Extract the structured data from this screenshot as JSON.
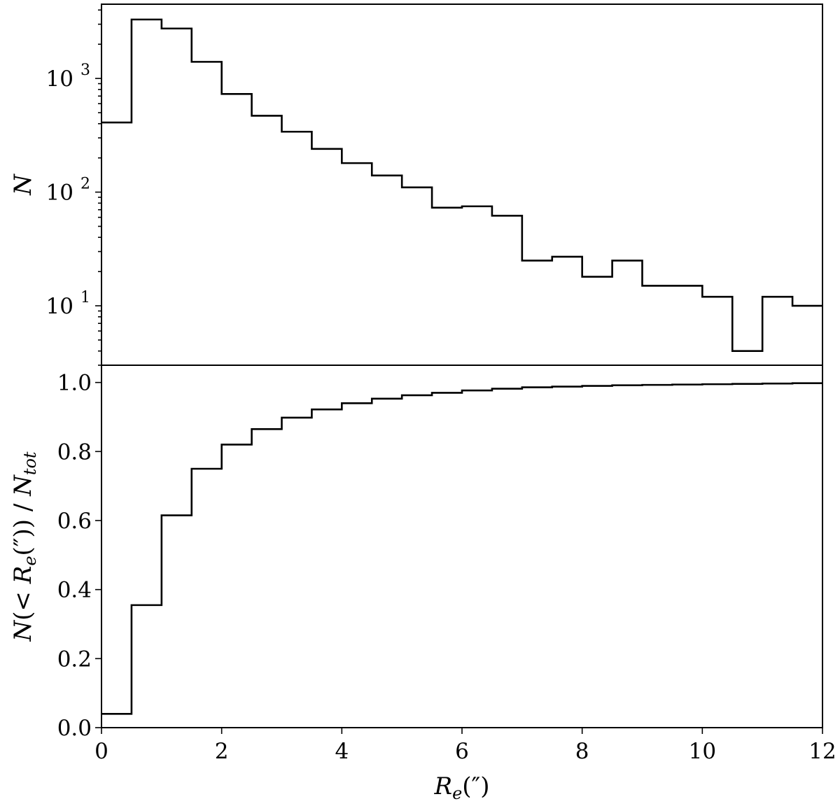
{
  "chart_data": [
    {
      "type": "histogram",
      "yscale": "log",
      "ylabel": "N",
      "xlim": [
        0,
        12
      ],
      "ylim": [
        3.0,
        4500
      ],
      "bin_edges": [
        0,
        0.5,
        1,
        1.5,
        2,
        2.5,
        3,
        3.5,
        4,
        4.5,
        5,
        5.5,
        6,
        6.5,
        7,
        7.5,
        8,
        8.5,
        9,
        9.5,
        10,
        10.5,
        11,
        11.5,
        12
      ],
      "values": [
        410,
        3300,
        2750,
        1400,
        730,
        470,
        340,
        240,
        180,
        140,
        110,
        73,
        75,
        62,
        25,
        27,
        18,
        25,
        15,
        15,
        12,
        4,
        12,
        10
      ],
      "yticks": [
        {
          "value": 10,
          "base": "10",
          "exp": "1"
        },
        {
          "value": 100,
          "base": "10",
          "exp": "2"
        },
        {
          "value": 1000,
          "base": "10",
          "exp": "3"
        }
      ],
      "grid": false
    },
    {
      "type": "histogram",
      "cumulative": true,
      "ylabel": "N(< R_e('')) / N_tot",
      "xlabel": "R_e('')",
      "xlim": [
        0,
        12
      ],
      "ylim": [
        0,
        1.05
      ],
      "bin_edges": [
        0,
        0.5,
        1,
        1.5,
        2,
        2.5,
        3,
        3.5,
        4,
        4.5,
        5,
        5.5,
        6,
        6.5,
        7,
        7.5,
        8,
        8.5,
        9,
        9.5,
        10,
        10.5,
        11,
        11.5,
        12
      ],
      "values": [
        0.04,
        0.355,
        0.615,
        0.75,
        0.82,
        0.865,
        0.898,
        0.922,
        0.94,
        0.953,
        0.963,
        0.97,
        0.977,
        0.982,
        0.986,
        0.988,
        0.99,
        0.992,
        0.993,
        0.994,
        0.995,
        0.996,
        0.997,
        0.998
      ],
      "xticks": [
        "0",
        "2",
        "4",
        "6",
        "8",
        "10",
        "12"
      ],
      "yticks": [
        "0.0",
        "0.2",
        "0.4",
        "0.6",
        "0.8",
        "1.0"
      ],
      "grid": false
    }
  ]
}
